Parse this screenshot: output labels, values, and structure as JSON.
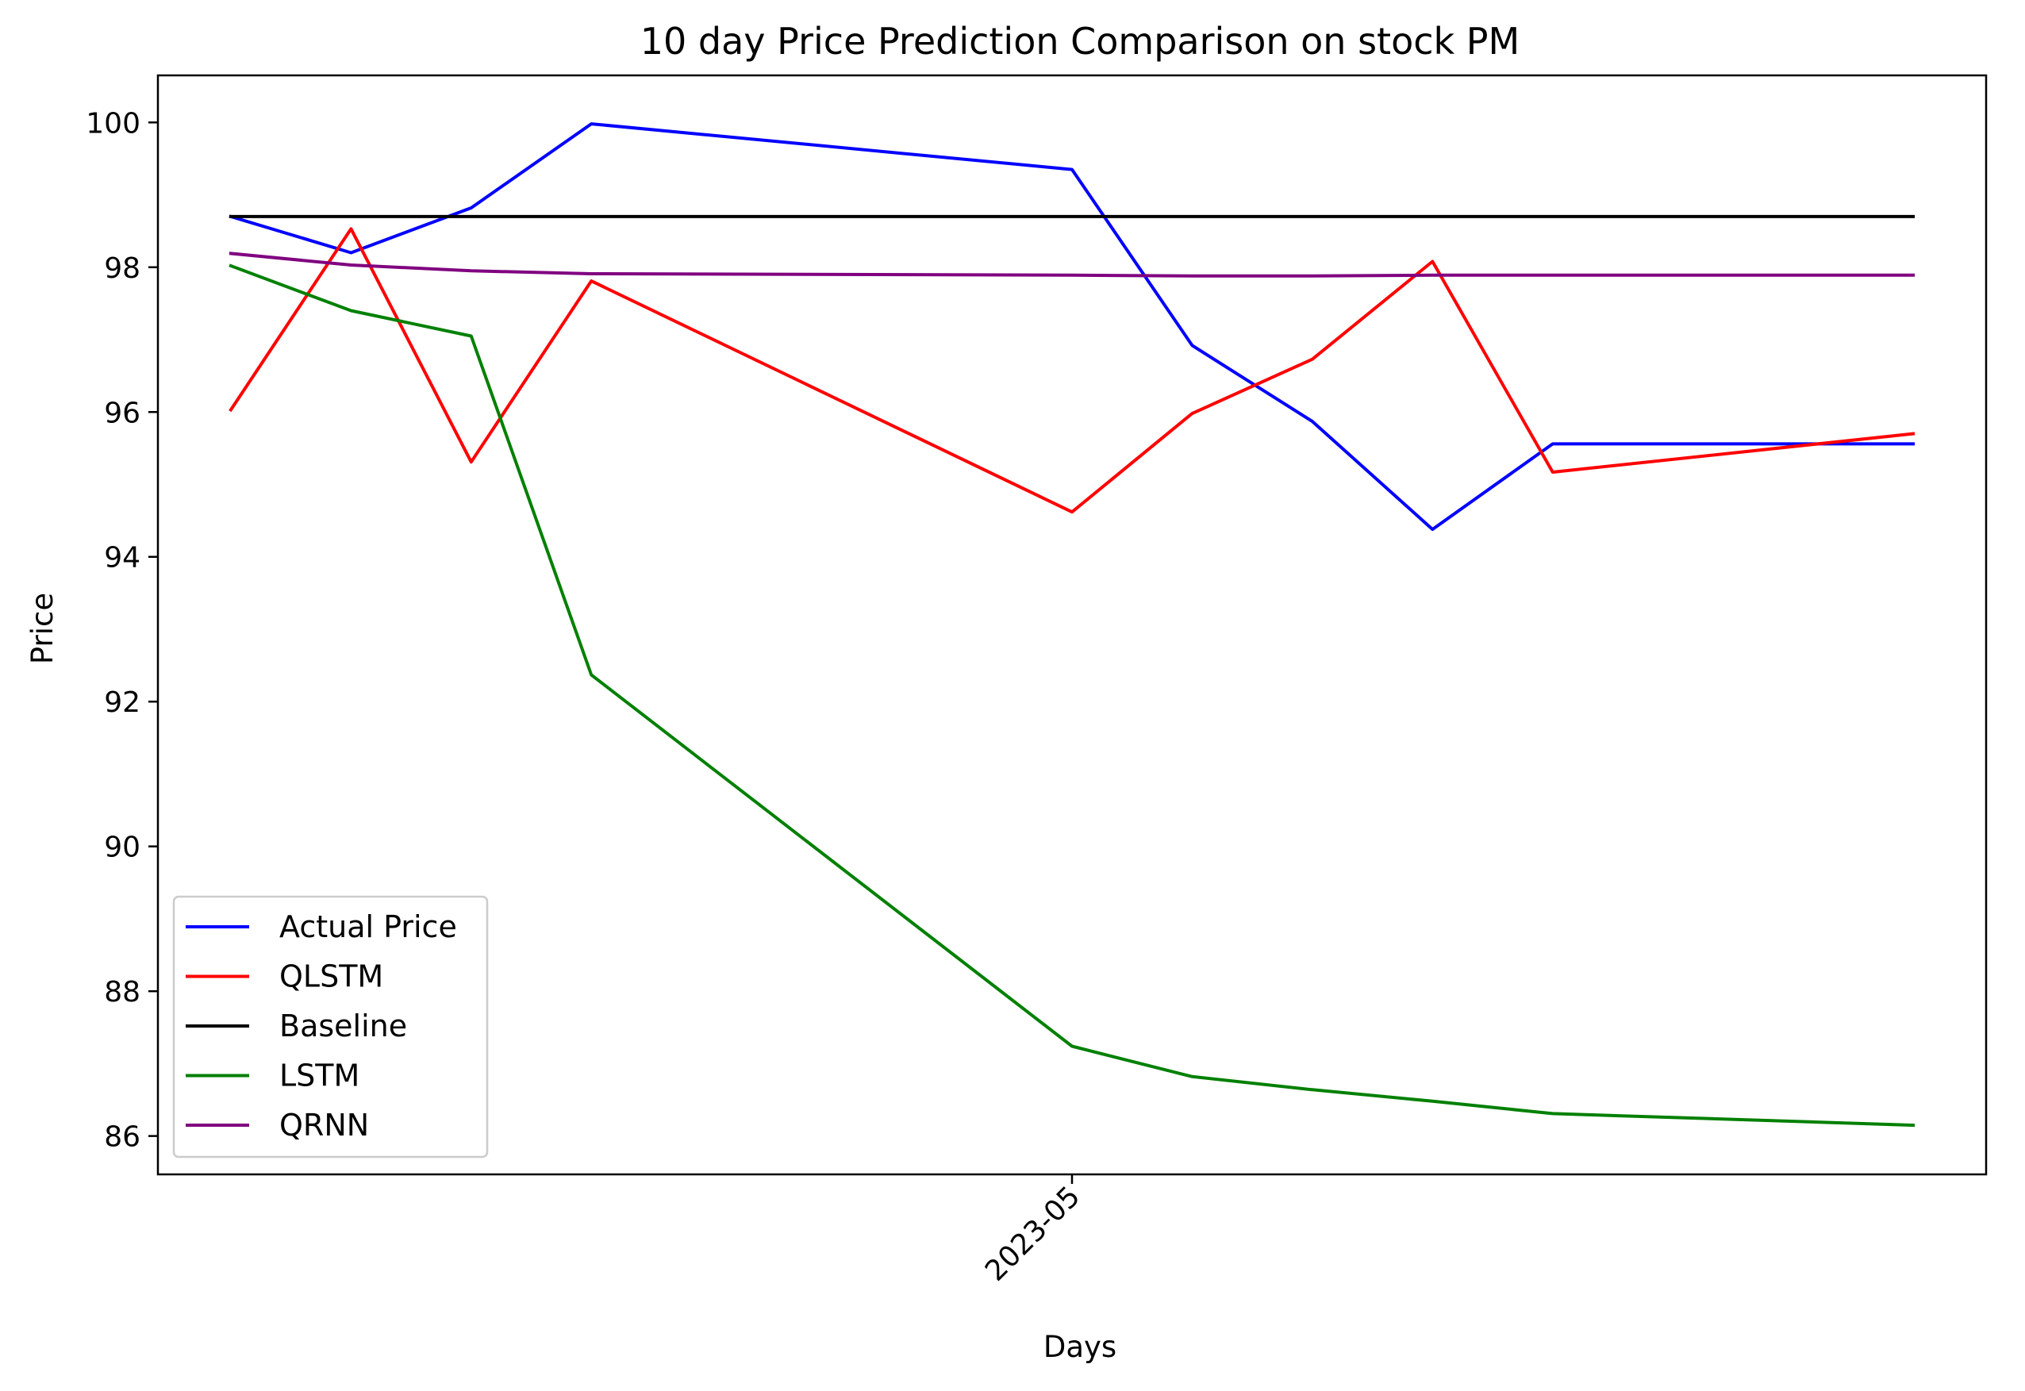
{
  "chart_data": {
    "type": "line",
    "title": "10 day Price Prediction Comparison on stock PM",
    "xlabel": "Days",
    "ylabel": "Price",
    "x": [
      "2023-04-24",
      "2023-04-25",
      "2023-04-26",
      "2023-04-27",
      "2023-05-01",
      "2023-05-02",
      "2023-05-03",
      "2023-05-04",
      "2023-05-05",
      "2023-05-08"
    ],
    "xlim": [
      "2023-04-23T09:26",
      "2023-05-08T14:34"
    ],
    "x_ticks": [
      {
        "value": "2023-05-01",
        "label": "2023-05"
      }
    ],
    "ylim": [
      85.47,
      100.65
    ],
    "y_ticks": [
      86,
      88,
      90,
      92,
      94,
      96,
      98,
      100
    ],
    "grid": false,
    "legend_position": "lower-left",
    "series": [
      {
        "name": "Actual Price",
        "color": "#0000ff",
        "values": [
          98.7,
          98.2,
          98.82,
          99.98,
          99.35,
          96.92,
          95.87,
          94.38,
          95.56,
          95.56
        ]
      },
      {
        "name": "QLSTM",
        "color": "#ff0000",
        "values": [
          96.03,
          98.53,
          95.31,
          97.81,
          94.62,
          95.98,
          96.73,
          98.08,
          95.17,
          95.7
        ]
      },
      {
        "name": "Baseline",
        "color": "#000000",
        "values": [
          98.7,
          98.7,
          98.7,
          98.7,
          98.7,
          98.7,
          98.7,
          98.7,
          98.7,
          98.7
        ]
      },
      {
        "name": "LSTM",
        "color": "#008000",
        "values": [
          98.02,
          97.4,
          97.05,
          92.37,
          87.24,
          86.82,
          86.64,
          86.48,
          86.31,
          86.15
        ]
      },
      {
        "name": "QRNN",
        "color": "#800080",
        "values": [
          98.19,
          98.03,
          97.95,
          97.91,
          97.89,
          97.88,
          97.88,
          97.89,
          97.89,
          97.89
        ]
      }
    ]
  }
}
